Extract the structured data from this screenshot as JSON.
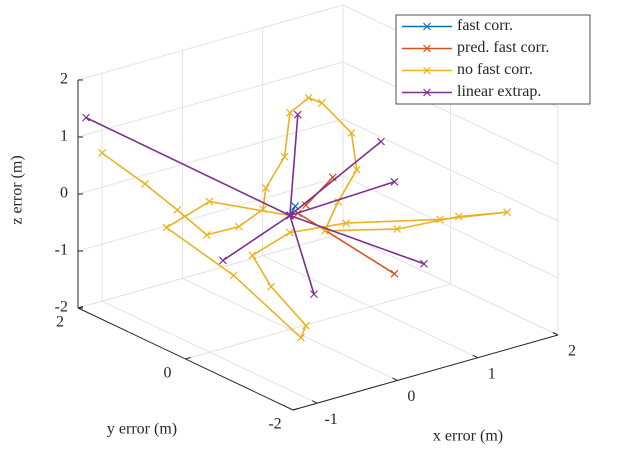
{
  "chart_data": {
    "type": "line3d",
    "xlabel": "x error (m)",
    "ylabel": "y error (m)",
    "zlabel": "z error (m)",
    "xlim": [
      -1.3,
      2
    ],
    "ylim": [
      -2,
      2
    ],
    "zlim": [
      -2,
      2
    ],
    "xticks": [
      -1,
      0,
      1,
      2
    ],
    "yticks": [
      -2,
      0,
      2
    ],
    "zticks": [
      -2,
      -1,
      0,
      1,
      2
    ],
    "grid": true,
    "legend": "northeast",
    "series": [
      {
        "name": "fast corr.",
        "color": "#0072BD",
        "x": [
          0,
          0.1
        ],
        "y": [
          0,
          0.05
        ],
        "z": [
          0,
          0.1
        ]
      },
      {
        "name": "pred. fast corr.",
        "color": "#D95319",
        "x": [
          0.1,
          0.7,
          null,
          0.2,
          0.4
        ],
        "y": [
          0,
          -0.9,
          null,
          0,
          -0.2
        ],
        "z": [
          0,
          -0.9,
          null,
          0.1,
          0.6
        ]
      },
      {
        "name": "no fast corr.",
        "color": "#EDB120",
        "x": [
          -1,
          -0.8,
          -0.6,
          -0.5,
          -0.3,
          -0.2,
          -0.3,
          -0.2,
          0,
          0.3,
          0.6,
          0.9,
          0.9,
          0.6,
          0.3,
          0.8,
          1.3,
          1.7,
          1.2,
          0.5,
          0,
          -0.2,
          -0.1,
          0,
          -0.05,
          -0.3,
          -0.6,
          -0.4,
          0
        ],
        "y": [
          2,
          1.5,
          1.2,
          0.8,
          0.5,
          0.2,
          0,
          -0.2,
          0,
          0.1,
          0.3,
          0.2,
          0.1,
          0,
          -0.2,
          -0.8,
          -1.2,
          -1.5,
          -1,
          -0.3,
          0,
          0.4,
          0.2,
          -0.3,
          -0.28,
          0.6,
          1.4,
          0.9,
          0
        ],
        "z": [
          0.6,
          0.2,
          -0.2,
          -0.5,
          -0.3,
          0.1,
          0.6,
          1.2,
          1.8,
          1.9,
          1.6,
          1,
          0.4,
          0,
          -0.3,
          -0.2,
          0,
          0.05,
          -0.1,
          -0.2,
          -0.3,
          -0.8,
          -1.3,
          -1.8,
          -2,
          -1.2,
          -0.6,
          0,
          0
        ]
      },
      {
        "name": "linear extrap.",
        "color": "#7E2F8E",
        "x": [
          0,
          -1.2,
          null,
          0,
          0.8,
          null,
          0,
          0.3,
          null,
          0,
          1,
          null,
          0,
          -0.7,
          null,
          0,
          0.5,
          null,
          0,
          0.9
        ],
        "y": [
          0,
          2,
          null,
          0,
          -0.5,
          null,
          0,
          0,
          null,
          0,
          -1,
          null,
          0,
          0.2,
          null,
          0,
          0.6,
          null,
          0,
          -0.6
        ],
        "z": [
          0,
          1.3,
          null,
          0,
          1.2,
          null,
          0,
          -1.5,
          null,
          0,
          -0.8,
          null,
          0,
          -0.6,
          null,
          0,
          1.3,
          null,
          0,
          0.5
        ]
      }
    ]
  }
}
